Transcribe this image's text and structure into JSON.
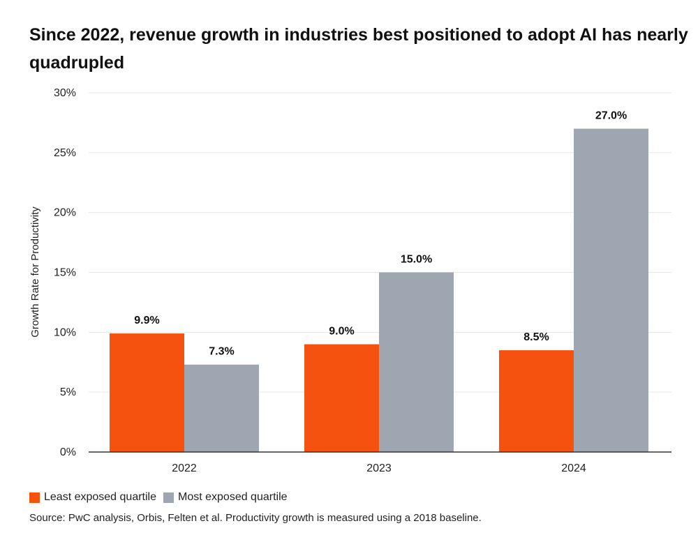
{
  "title": "Since 2022, revenue growth in industries best positioned to adopt AI has nearly quadrupled",
  "source": "Source: PwC analysis, Orbis, Felten et al. Productivity growth is measured using a 2018 baseline.",
  "colors": {
    "least": "#f5520f",
    "most": "#9ea7b1",
    "grid": "#e6e6e6",
    "axis": "#333333"
  },
  "chart_data": {
    "type": "bar",
    "categories": [
      "2022",
      "2023",
      "2024"
    ],
    "series": [
      {
        "name": "Least exposed quartile",
        "values": [
          9.9,
          9.0,
          8.5
        ],
        "labels": [
          "9.9%",
          "9.0%",
          "8.5%"
        ]
      },
      {
        "name": "Most exposed quartile",
        "values": [
          7.3,
          15.0,
          27.0
        ],
        "labels": [
          "7.3%",
          "15.0%",
          "27.0%"
        ]
      }
    ],
    "ylabel": "Growth Rate for Productivity",
    "xlabel": "",
    "ylim": [
      0,
      30
    ],
    "yticks": [
      0,
      5,
      10,
      15,
      20,
      25,
      30
    ],
    "ytick_labels": [
      "0%",
      "5%",
      "10%",
      "15%",
      "20%",
      "25%",
      "30%"
    ],
    "grid": true,
    "legend_position": "bottom-left"
  }
}
